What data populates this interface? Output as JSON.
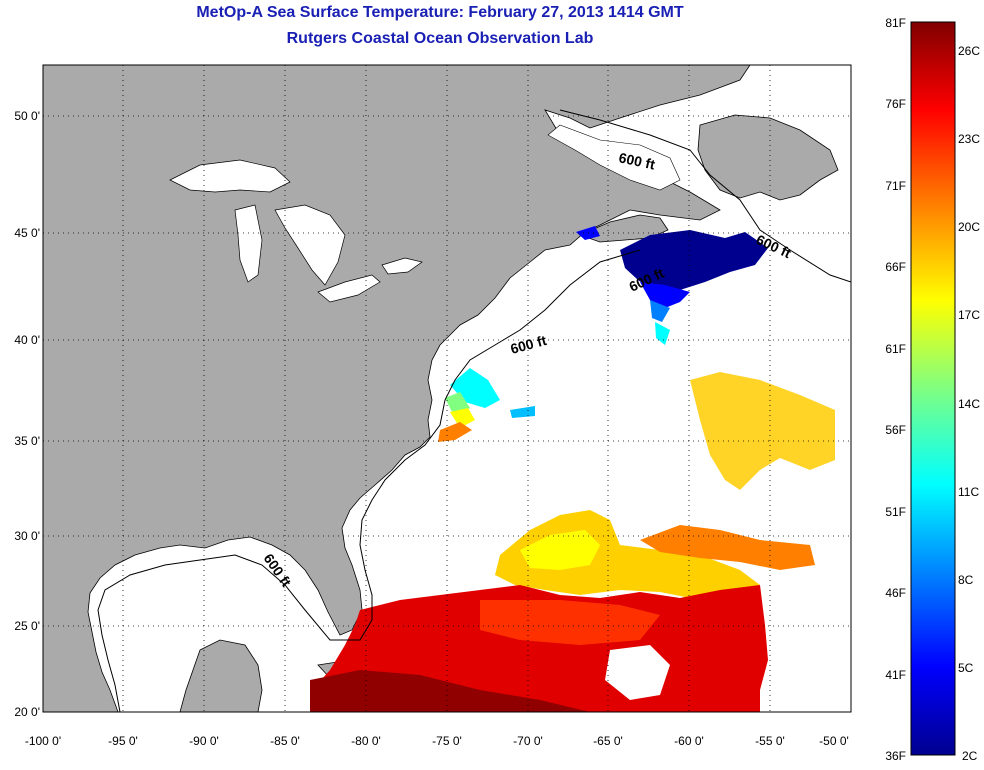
{
  "title": "MetOp-A Sea Surface Temperature:  February 27, 2013 1414 GMT",
  "subtitle": "Rutgers Coastal Ocean Observation Lab",
  "lon_ticks": [
    "-100 0'",
    "-95 0'",
    "-90 0'",
    "-85 0'",
    "-80 0'",
    "-75 0'",
    "-70 0'",
    "-65 0'",
    "-60 0'",
    "-55 0'",
    "-50 0'"
  ],
  "lat_ticks": [
    "50 0'",
    "45 0'",
    "40 0'",
    "35 0'",
    "30 0'",
    "25 0'",
    "20 0'"
  ],
  "depth_labels": [
    "600 ft",
    "600 ft",
    "600 ft",
    "600 ft",
    "600 ft"
  ],
  "colorbar": {
    "fahrenheit": [
      "81F",
      "76F",
      "71F",
      "66F",
      "61F",
      "56F",
      "51F",
      "46F",
      "41F",
      "36F"
    ],
    "celsius": [
      "26C",
      "23C",
      "20C",
      "17C",
      "14C",
      "11C",
      "8C",
      "5C",
      "2C"
    ],
    "colors": [
      "#00008f",
      "#0000ff",
      "#0080ff",
      "#00ffff",
      "#80ff80",
      "#ffff00",
      "#ff8000",
      "#ff0000",
      "#800000"
    ]
  },
  "colors": {
    "land": "#aaaaaa",
    "ocean": "#ffffff",
    "title": "#1a20b4"
  }
}
